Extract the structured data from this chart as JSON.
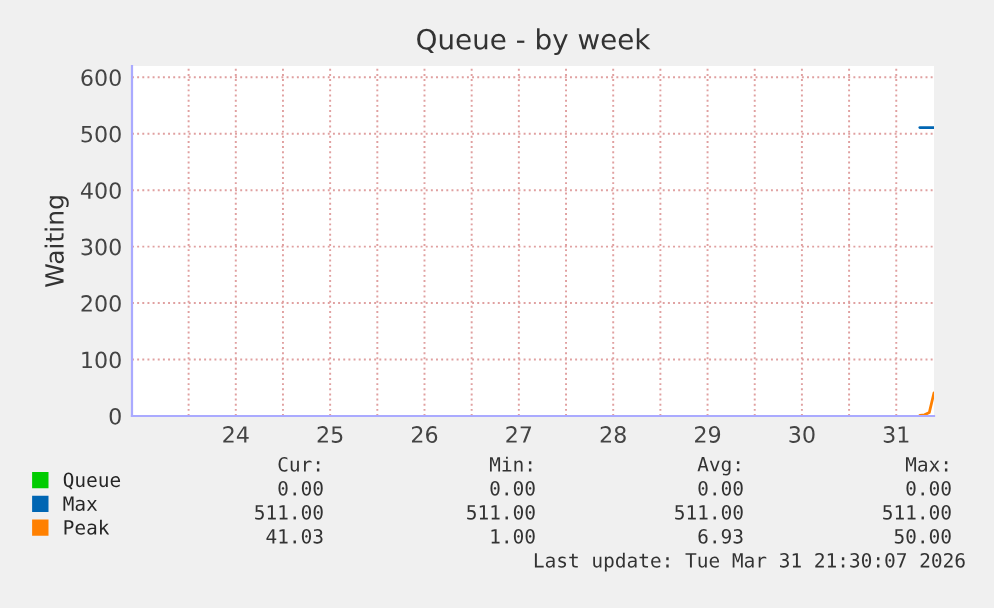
{
  "chart_data": {
    "type": "line",
    "title": "Queue - by week",
    "ylabel": "Waiting",
    "x": [
      31.75,
      31.8,
      31.85,
      31.9
    ],
    "series": [
      {
        "name": "Queue",
        "color": "#00cc00",
        "values": [
          null,
          null,
          null,
          null
        ]
      },
      {
        "name": "Max",
        "color": "#0066b3",
        "values": [
          511,
          511,
          511,
          511
        ]
      },
      {
        "name": "Peak",
        "color": "#ff8000",
        "values": [
          1,
          2,
          6,
          41
        ]
      }
    ],
    "xlim": [
      23.4,
      31.9
    ],
    "xticks": [
      {
        "value": 24,
        "label": null
      },
      {
        "value": 24.5,
        "label": "24"
      },
      {
        "value": 25,
        "label": null
      },
      {
        "value": 25.5,
        "label": "25"
      },
      {
        "value": 26,
        "label": null
      },
      {
        "value": 26.5,
        "label": "26"
      },
      {
        "value": 27,
        "label": null
      },
      {
        "value": 27.5,
        "label": "27"
      },
      {
        "value": 28,
        "label": null
      },
      {
        "value": 28.5,
        "label": "28"
      },
      {
        "value": 29,
        "label": null
      },
      {
        "value": 29.5,
        "label": "29"
      },
      {
        "value": 30,
        "label": null
      },
      {
        "value": 30.5,
        "label": "30"
      },
      {
        "value": 31,
        "label": null
      },
      {
        "value": 31.5,
        "label": "31"
      }
    ],
    "ylim": [
      0,
      620
    ],
    "yticks": [
      0,
      100,
      200,
      300,
      400,
      500,
      600
    ],
    "grid": true,
    "legend": "bottom left",
    "annotations": [
      "Cur:",
      "Min:",
      "Avg:",
      "Max:",
      "0.00",
      "0.00",
      "0.00",
      "0.00",
      "511.00",
      "511.00",
      "511.00",
      "511.00",
      "41.03",
      "1.00",
      "6.93",
      "50.00",
      "Last update: Tue Mar 31 21:30:07 2026"
    ]
  }
}
